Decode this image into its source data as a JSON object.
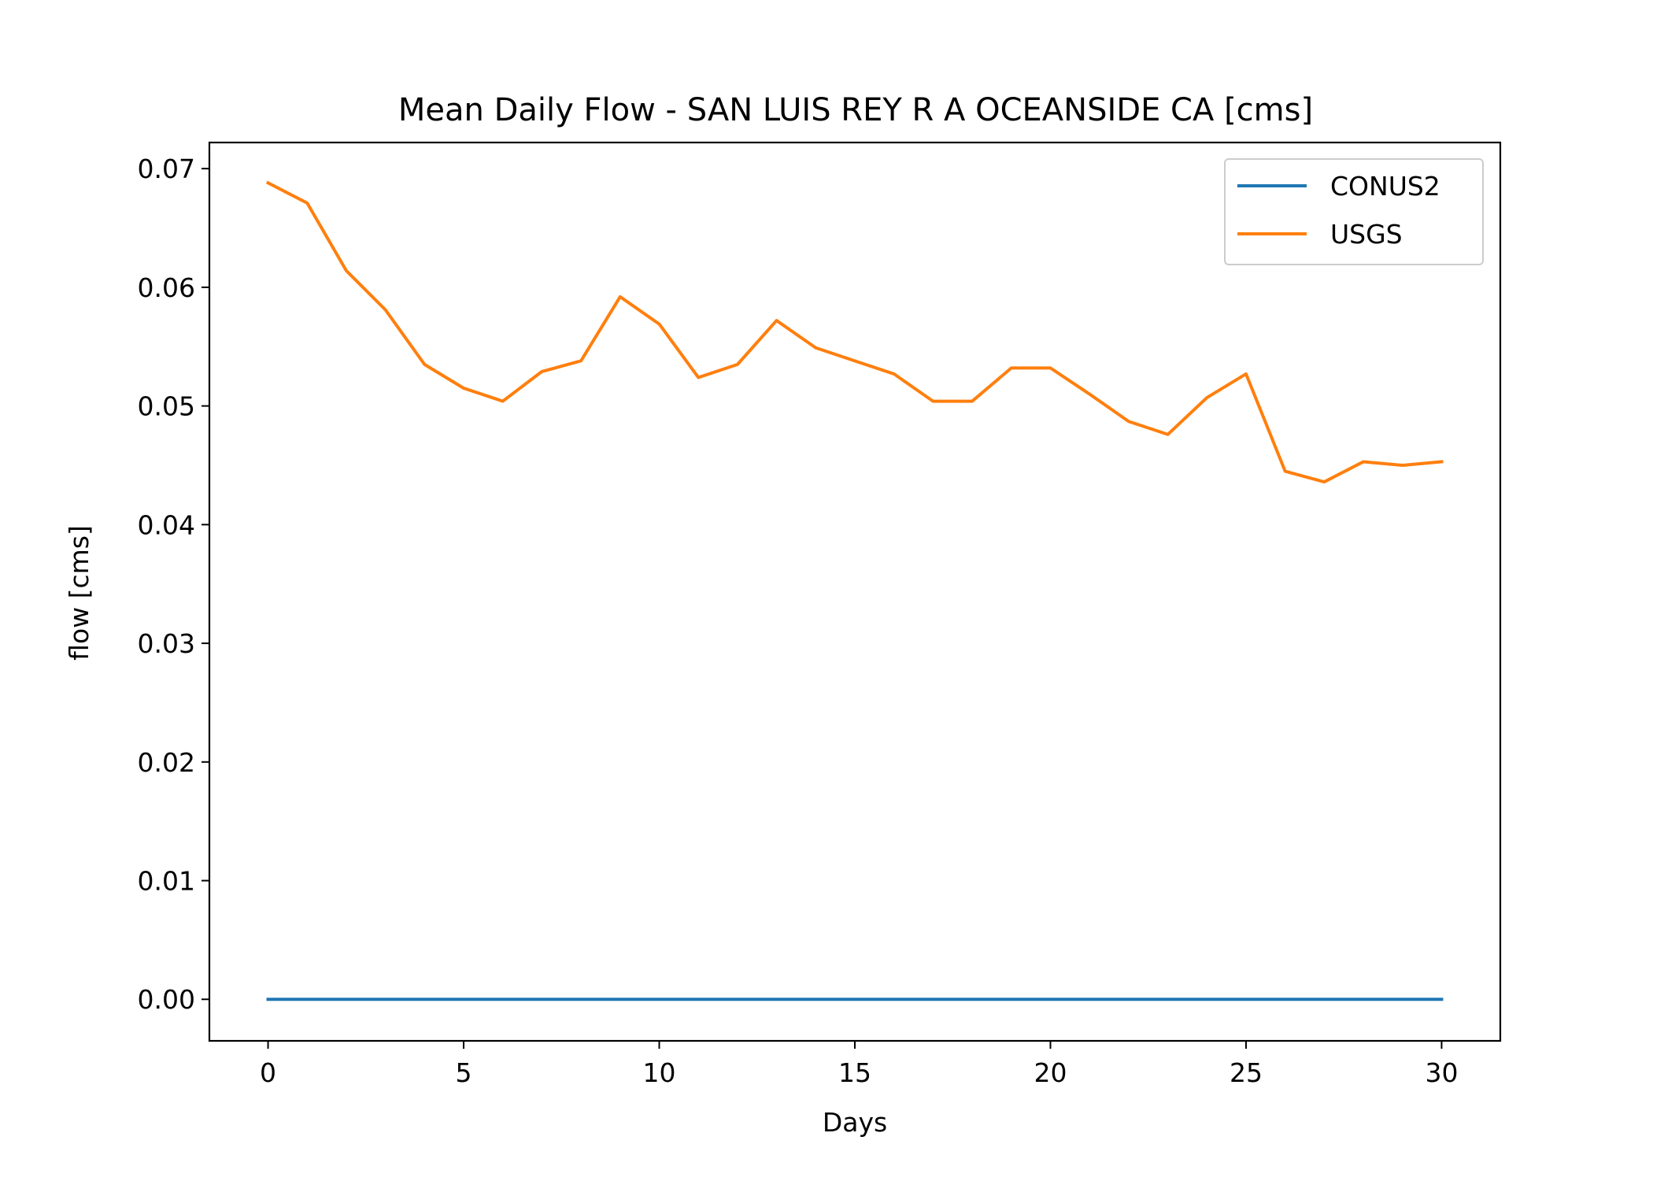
{
  "chart_data": {
    "type": "line",
    "title": "Mean Daily Flow - SAN LUIS REY R A OCEANSIDE CA [cms]",
    "xlabel": "Days",
    "ylabel": "flow [cms]",
    "xlim": [
      -1.5,
      31.5
    ],
    "ylim": [
      -0.0035,
      0.0722
    ],
    "xticks": [
      0,
      5,
      10,
      15,
      20,
      25,
      30
    ],
    "xtick_labels": [
      "0",
      "5",
      "10",
      "15",
      "20",
      "25",
      "30"
    ],
    "yticks": [
      0.0,
      0.01,
      0.02,
      0.03,
      0.04,
      0.05,
      0.06,
      0.07
    ],
    "ytick_labels": [
      "0.00",
      "0.01",
      "0.02",
      "0.03",
      "0.04",
      "0.05",
      "0.06",
      "0.07"
    ],
    "grid": false,
    "legend_position": "top-right",
    "x": [
      0,
      1,
      2,
      3,
      4,
      5,
      6,
      7,
      8,
      9,
      10,
      11,
      12,
      13,
      14,
      15,
      16,
      17,
      18,
      19,
      20,
      21,
      22,
      23,
      24,
      25,
      26,
      27,
      28,
      29,
      30
    ],
    "series": [
      {
        "name": "CONUS2",
        "color": "#1f77b4",
        "values": [
          0,
          0,
          0,
          0,
          0,
          0,
          0,
          0,
          0,
          0,
          0,
          0,
          0,
          0,
          0,
          0,
          0,
          0,
          0,
          0,
          0,
          0,
          0,
          0,
          0,
          0,
          0,
          0,
          0,
          0,
          0
        ]
      },
      {
        "name": "USGS",
        "color": "#ff7f0e",
        "values": [
          0.0688,
          0.0671,
          0.0614,
          0.0581,
          0.0535,
          0.0515,
          0.0504,
          0.0529,
          0.0538,
          0.0592,
          0.0569,
          0.0524,
          0.0535,
          0.0572,
          0.0549,
          0.0538,
          0.0527,
          0.0504,
          0.0504,
          0.0532,
          0.0532,
          0.051,
          0.0487,
          0.0476,
          0.0507,
          0.0527,
          0.0445,
          0.0436,
          0.0453,
          0.045,
          0.0453
        ]
      }
    ]
  }
}
